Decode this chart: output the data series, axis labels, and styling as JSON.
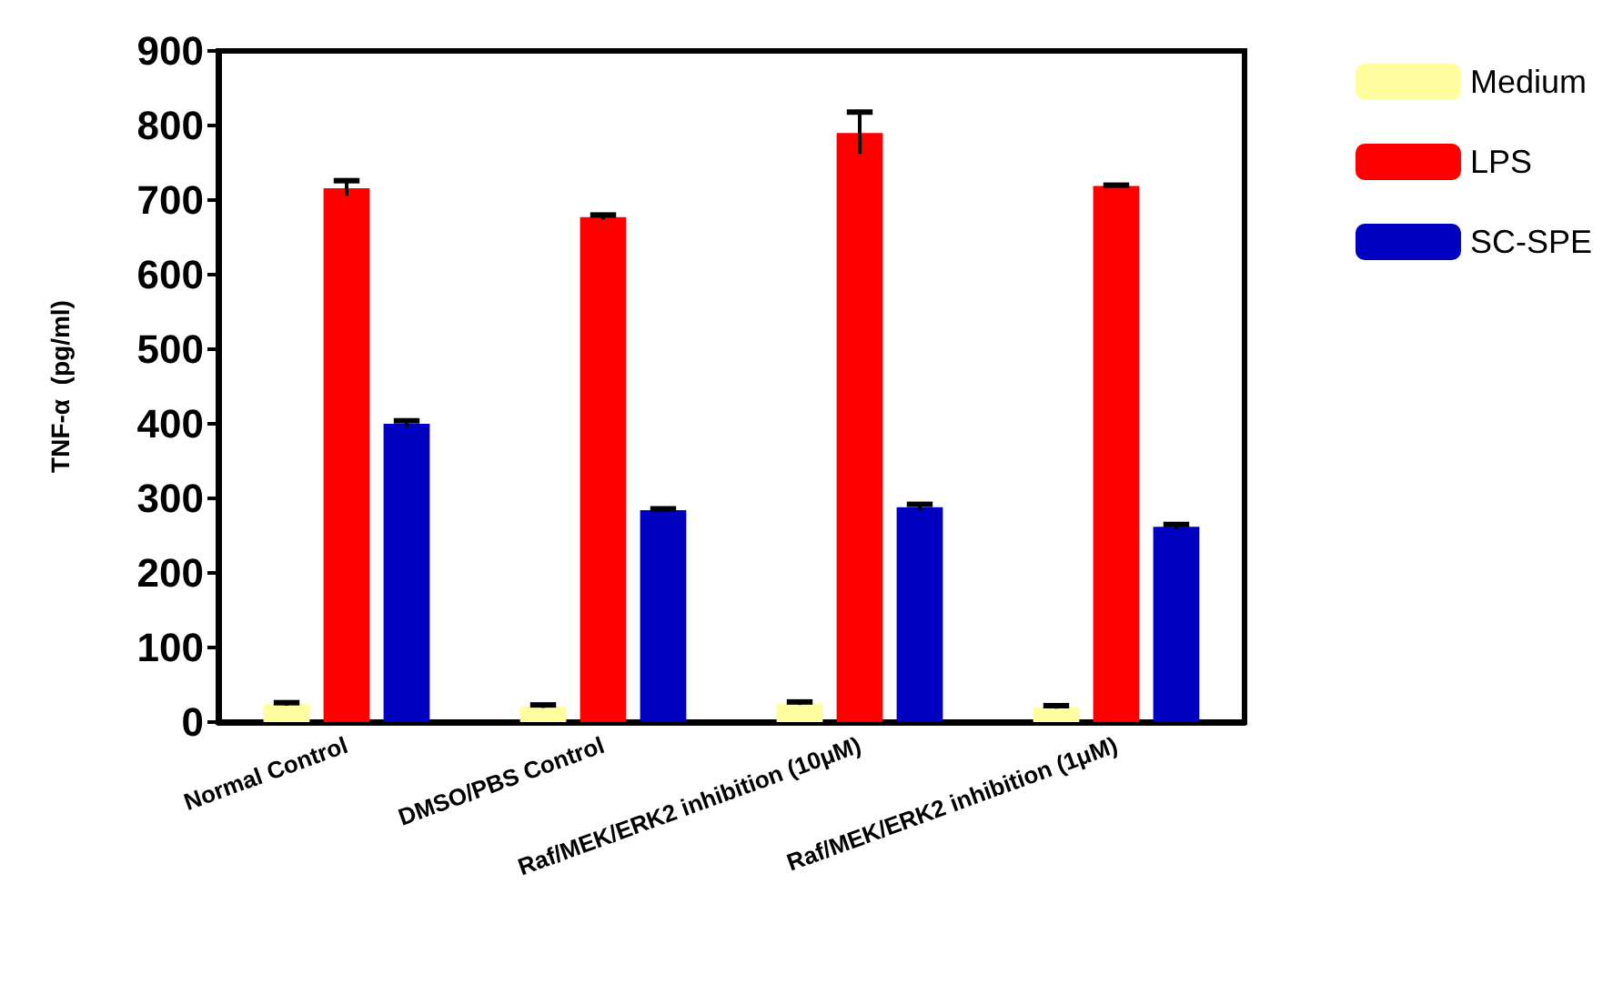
{
  "chart_data": {
    "type": "bar",
    "ylabel": "TNF-α  (pg/ml)",
    "categories": [
      "Normal Control",
      "DMSO/PBS Control",
      "Raf/MEK/ERK2 inhibition (10μM)",
      "Raf/MEK/ERK2 inhibition (1μM)"
    ],
    "series": [
      {
        "name": "Medium",
        "color": "#ffffa0",
        "values": [
          24,
          21,
          25,
          20
        ],
        "errors": [
          2,
          2,
          2,
          2
        ]
      },
      {
        "name": "LPS",
        "color": "#ff0000",
        "values": [
          716,
          677,
          790,
          719
        ],
        "errors": [
          10,
          3,
          28,
          1
        ]
      },
      {
        "name": "SC-SPE",
        "color": "#0000c0",
        "values": [
          400,
          284,
          288,
          262
        ],
        "errors": [
          4,
          2,
          4,
          3
        ]
      }
    ],
    "ylim": [
      0,
      900
    ],
    "yticks": [
      0,
      100,
      200,
      300,
      400,
      500,
      600,
      700,
      800,
      900
    ],
    "grid": false,
    "legend": "right"
  }
}
